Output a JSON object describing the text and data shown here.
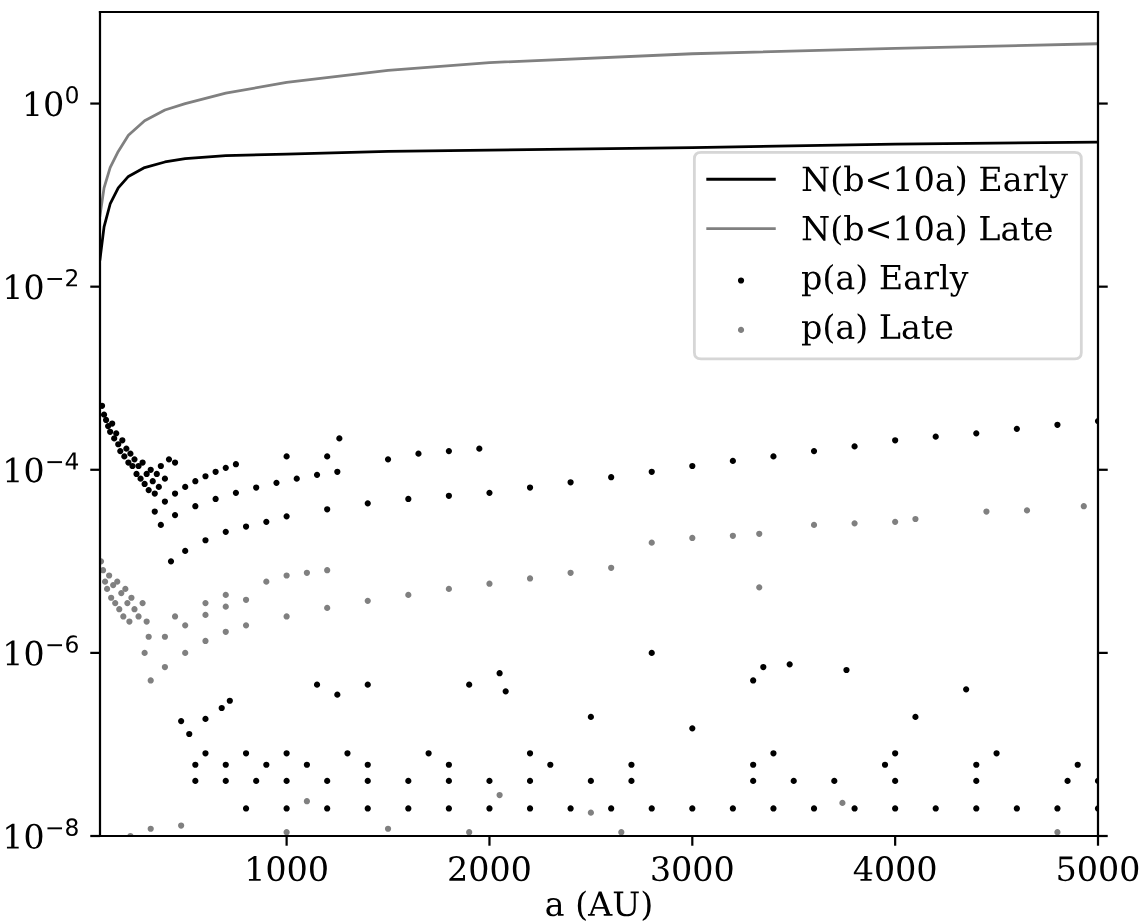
{
  "chart_data": {
    "type": "scatter",
    "xlabel": "a (AU)",
    "log": "y",
    "grid": false,
    "legend": "top right",
    "xlim": [
      80,
      5000
    ],
    "xticks": [
      1000,
      2000,
      3000,
      4000,
      5000
    ],
    "ylim": [
      1e-08,
      10
    ],
    "yticks": [
      {
        "value": 1,
        "label": "10$^{0}$"
      },
      {
        "value": 0.01,
        "label": "10$^{−2}$"
      },
      {
        "value": 0.0001,
        "label": "10$^{−4}$"
      },
      {
        "value": 1e-06,
        "label": "10$^{−6}$"
      },
      {
        "value": 1e-08,
        "label": "10$^{−8}$"
      }
    ],
    "series": [
      {
        "name": "N(b<10a) Early",
        "type": "line",
        "color": "#000000",
        "line_style": "solid",
        "marker": "none",
        "x": [
          80,
          100,
          130,
          170,
          220,
          300,
          400,
          500,
          700,
          1000,
          1500,
          2000,
          3000,
          4000,
          5000
        ],
        "values": [
          0.02,
          0.045,
          0.08,
          0.12,
          0.16,
          0.2,
          0.23,
          0.25,
          0.27,
          0.28,
          0.3,
          0.31,
          0.33,
          0.36,
          0.38
        ]
      },
      {
        "name": "N(b<10a) Late",
        "type": "line",
        "color": "#808080",
        "line_style": "solid",
        "marker": "none",
        "x": [
          80,
          100,
          130,
          170,
          220,
          300,
          400,
          500,
          700,
          1000,
          1500,
          2000,
          3000,
          4000,
          5000
        ],
        "values": [
          0.06,
          0.12,
          0.2,
          0.3,
          0.45,
          0.65,
          0.85,
          1.0,
          1.3,
          1.7,
          2.3,
          2.8,
          3.5,
          4.0,
          4.5
        ]
      },
      {
        "name": "p(a) Early",
        "color": "#000000",
        "marker": "circle",
        "x": [
          90,
          100,
          110,
          120,
          130,
          140,
          150,
          160,
          170,
          180,
          190,
          200,
          210,
          220,
          230,
          240,
          250,
          260,
          270,
          280,
          290,
          300,
          310,
          320,
          330,
          340,
          350,
          360,
          370,
          380,
          400,
          420,
          450,
          350,
          400,
          450,
          500,
          550,
          600,
          650,
          700,
          750,
          380,
          450,
          550,
          650,
          750,
          850,
          950,
          1050,
          1150,
          1250,
          430,
          500,
          600,
          700,
          800,
          900,
          1000,
          1200,
          1400,
          1600,
          1800,
          2000,
          2200,
          2400,
          2600,
          2800,
          3000,
          3200,
          3400,
          3600,
          3800,
          4000,
          4200,
          4400,
          4600,
          4800,
          5000,
          1000,
          1260,
          1200,
          1500,
          1650,
          1800,
          1950,
          480,
          520,
          600,
          680,
          720,
          1150,
          1250,
          1400,
          1900,
          2050,
          2080,
          2800,
          3300,
          3350,
          3480,
          3760,
          4350,
          4100,
          2500,
          3000,
          600,
          800,
          1000,
          1300,
          1700,
          2200,
          3400,
          4000,
          4500,
          550,
          700,
          900,
          1100,
          1400,
          1800,
          2300,
          2700,
          3300,
          3950,
          4400,
          4900,
          550,
          700,
          850,
          1000,
          1200,
          1400,
          1600,
          1800,
          2000,
          2200,
          2500,
          2700,
          3300,
          3500,
          3700,
          4000,
          4400,
          4850,
          5000,
          800,
          1000,
          1200,
          1400,
          1600,
          1800,
          2000,
          2200,
          2400,
          2600,
          2800,
          3000,
          3200,
          3400,
          3600,
          3800,
          4000,
          4200,
          4400,
          4600,
          4800,
          5000
        ],
        "values": [
          0.0005,
          0.0004,
          0.00035,
          0.0003,
          0.00026,
          0.00032,
          0.00022,
          0.00025,
          0.00019,
          0.00016,
          0.00021,
          0.00014,
          0.00017,
          0.00012,
          0.00015,
          0.00011,
          0.00013,
          9e-05,
          0.00011,
          8e-05,
          0.00012,
          7e-05,
          9e-05,
          6e-05,
          0.0001,
          7.5e-05,
          5.5e-05,
          9e-05,
          6.5e-05,
          0.00011,
          8e-05,
          0.00013,
          0.00012,
          3.5e-05,
          4.5e-05,
          5.5e-05,
          6.5e-05,
          7.5e-05,
          8.5e-05,
          9.5e-05,
          0.000105,
          0.000115,
          2.5e-05,
          3.2e-05,
          4e-05,
          4.8e-05,
          5.6e-05,
          6.4e-05,
          7.2e-05,
          8e-05,
          8.8e-05,
          9.5e-05,
          1e-05,
          1.3e-05,
          1.7e-05,
          2.1e-05,
          2.4e-05,
          2.7e-05,
          3.1e-05,
          3.7e-05,
          4.3e-05,
          4.8e-05,
          5.2e-05,
          5.6e-05,
          6.4e-05,
          7.3e-05,
          8.3e-05,
          9.5e-05,
          0.00011,
          0.000125,
          0.00014,
          0.00016,
          0.00018,
          0.00021,
          0.00023,
          0.00025,
          0.00028,
          0.00031,
          0.00034,
          0.00014,
          0.00022,
          0.00014,
          0.00013,
          0.00015,
          0.00016,
          0.00017,
          1.8e-07,
          1.3e-07,
          1.9e-07,
          2.5e-07,
          3e-07,
          4.5e-07,
          3.5e-07,
          4.5e-07,
          4.5e-07,
          6e-07,
          3.8e-07,
          1e-06,
          5e-07,
          7e-07,
          7.5e-07,
          6.5e-07,
          4e-07,
          2e-07,
          2e-07,
          1.5e-07,
          8e-08,
          8e-08,
          8e-08,
          8e-08,
          8e-08,
          8e-08,
          8e-08,
          8e-08,
          8e-08,
          6e-08,
          6e-08,
          6e-08,
          6e-08,
          6e-08,
          6e-08,
          6e-08,
          6e-08,
          6e-08,
          6e-08,
          6e-08,
          6e-08,
          4e-08,
          4e-08,
          4e-08,
          4e-08,
          4e-08,
          4e-08,
          4e-08,
          4e-08,
          4e-08,
          4e-08,
          4e-08,
          4e-08,
          4e-08,
          4e-08,
          4e-08,
          4e-08,
          4e-08,
          4e-08,
          4e-08,
          2e-08,
          2e-08,
          2e-08,
          2e-08,
          2e-08,
          2e-08,
          2e-08,
          2e-08,
          2e-08,
          2e-08,
          2e-08,
          2e-08,
          2e-08,
          2e-08,
          2e-08,
          2e-08,
          2e-08,
          2e-08,
          2e-08,
          2e-08,
          2e-08,
          2e-08
        ]
      },
      {
        "name": "p(a) Late",
        "color": "#808080",
        "marker": "circle",
        "x": [
          85,
          95,
          105,
          115,
          125,
          135,
          145,
          155,
          165,
          175,
          185,
          195,
          205,
          215,
          225,
          235,
          250,
          270,
          290,
          310,
          330,
          400,
          500,
          600,
          700,
          800,
          1000,
          1200,
          1400,
          1600,
          1800,
          2000,
          2200,
          2400,
          2600,
          300,
          400,
          500,
          600,
          700,
          800,
          320,
          450,
          600,
          700,
          900,
          1000,
          1100,
          1200,
          2800,
          3000,
          3200,
          3330,
          3600,
          3800,
          4000,
          4100,
          4450,
          4650,
          4930,
          3330,
          230,
          330,
          480,
          1000,
          1100,
          1500,
          1900,
          2050,
          2500,
          2650,
          3740,
          4800
        ],
        "values": [
          1e-05,
          8e-06,
          6e-06,
          5e-06,
          7e-06,
          4e-06,
          5.5e-06,
          3.5e-06,
          6e-06,
          3e-06,
          4.5e-06,
          2.5e-06,
          5e-06,
          3.5e-06,
          2.2e-06,
          4e-06,
          3e-06,
          2.5e-06,
          3.5e-06,
          2.2e-06,
          5e-07,
          7e-07,
          1e-06,
          1.35e-06,
          1.7e-06,
          2e-06,
          2.5e-06,
          3.1e-06,
          3.7e-06,
          4.3e-06,
          5e-06,
          5.7e-06,
          6.5e-06,
          7.5e-06,
          8.5e-06,
          1e-06,
          1.5e-06,
          2e-06,
          2.6e-06,
          3.2e-06,
          3.8e-06,
          1.5e-06,
          2.5e-06,
          3.5e-06,
          4.3e-06,
          6e-06,
          7e-06,
          7.5e-06,
          8e-06,
          1.6e-05,
          1.8e-05,
          1.9e-05,
          2e-05,
          2.5e-05,
          2.6e-05,
          2.7e-05,
          2.9e-05,
          3.5e-05,
          3.6e-05,
          4e-05,
          5.2e-06,
          1e-08,
          1.2e-08,
          1.3e-08,
          1.1e-08,
          2.4e-08,
          1.2e-08,
          1.1e-08,
          2.8e-08,
          1.8e-08,
          1.1e-08,
          2.3e-08,
          1.1e-08
        ]
      }
    ]
  }
}
